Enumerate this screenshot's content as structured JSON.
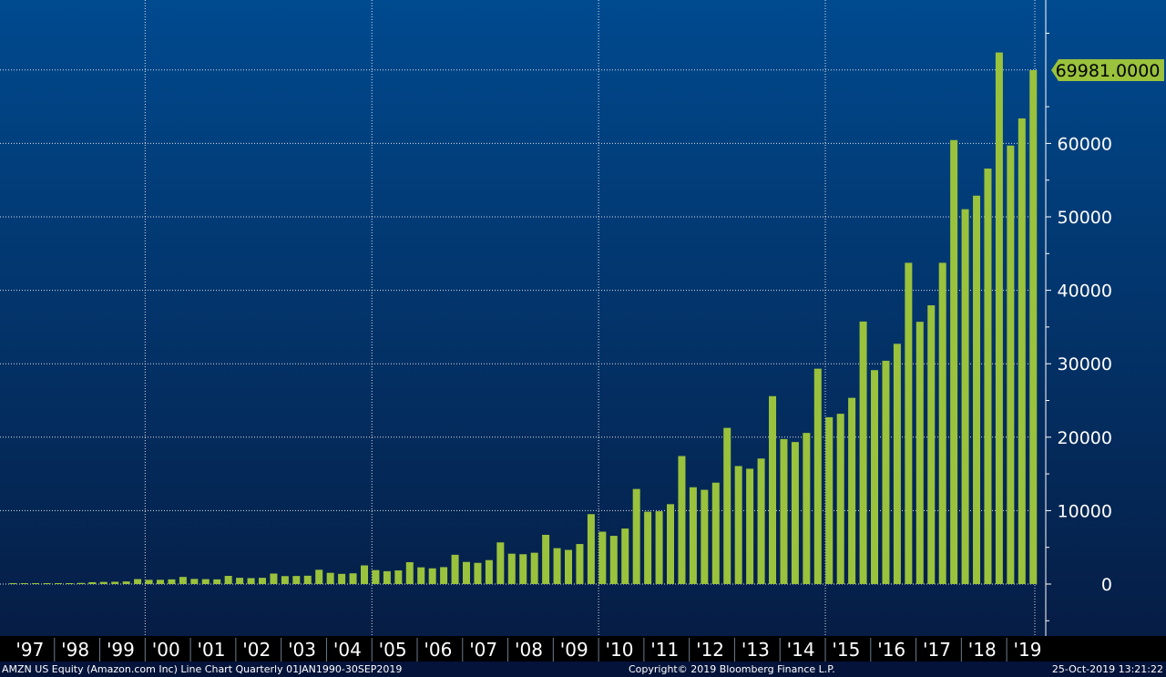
{
  "colors": {
    "bar": "#9ac23c",
    "label_bg": "#9ac23c",
    "grid": "#ffffff",
    "axis_text": "#ffffff",
    "bg_top": "#004a8f",
    "bg_bottom": "#061a40"
  },
  "footer": {
    "left": "AMZN US Equity (Amazon.com Inc) Line Chart  Quarterly 01JAN1990-30SEP2019",
    "center": "Copyright© 2019 Bloomberg Finance L.P.",
    "right": "25-Oct-2019 13:21:22"
  },
  "chart_data": {
    "type": "bar",
    "last_value_label": "69981.0000",
    "ylim": [
      -5000,
      79000
    ],
    "yticks": [
      0,
      10000,
      20000,
      30000,
      40000,
      50000,
      60000
    ],
    "x_tick_labels": [
      "'97",
      "'98",
      "'99",
      "'00",
      "'01",
      "'02",
      "'03",
      "'04",
      "'05",
      "'06",
      "'07",
      "'08",
      "'09",
      "'10",
      "'11",
      "'12",
      "'13",
      "'14",
      "'15",
      "'16",
      "'17",
      "'18",
      "'19"
    ],
    "grid": true,
    "categories": [
      "1997 Q1",
      "1997 Q2",
      "1997 Q3",
      "1997 Q4",
      "1998 Q1",
      "1998 Q2",
      "1998 Q3",
      "1998 Q4",
      "1999 Q1",
      "1999 Q2",
      "1999 Q3",
      "1999 Q4",
      "2000 Q1",
      "2000 Q2",
      "2000 Q3",
      "2000 Q4",
      "2001 Q1",
      "2001 Q2",
      "2001 Q3",
      "2001 Q4",
      "2002 Q1",
      "2002 Q2",
      "2002 Q3",
      "2002 Q4",
      "2003 Q1",
      "2003 Q2",
      "2003 Q3",
      "2003 Q4",
      "2004 Q1",
      "2004 Q2",
      "2004 Q3",
      "2004 Q4",
      "2005 Q1",
      "2005 Q2",
      "2005 Q3",
      "2005 Q4",
      "2006 Q1",
      "2006 Q2",
      "2006 Q3",
      "2006 Q4",
      "2007 Q1",
      "2007 Q2",
      "2007 Q3",
      "2007 Q4",
      "2008 Q1",
      "2008 Q2",
      "2008 Q3",
      "2008 Q4",
      "2009 Q1",
      "2009 Q2",
      "2009 Q3",
      "2009 Q4",
      "2010 Q1",
      "2010 Q2",
      "2010 Q3",
      "2010 Q4",
      "2011 Q1",
      "2011 Q2",
      "2011 Q3",
      "2011 Q4",
      "2012 Q1",
      "2012 Q2",
      "2012 Q3",
      "2012 Q4",
      "2013 Q1",
      "2013 Q2",
      "2013 Q3",
      "2013 Q4",
      "2014 Q1",
      "2014 Q2",
      "2014 Q3",
      "2014 Q4",
      "2015 Q1",
      "2015 Q2",
      "2015 Q3",
      "2015 Q4",
      "2016 Q1",
      "2016 Q2",
      "2016 Q3",
      "2016 Q4",
      "2017 Q1",
      "2017 Q2",
      "2017 Q3",
      "2017 Q4",
      "2018 Q1",
      "2018 Q2",
      "2018 Q3",
      "2018 Q4",
      "2019 Q1",
      "2019 Q2",
      "2019 Q3"
    ],
    "values": [
      16,
      28,
      38,
      66,
      88,
      116,
      154,
      253,
      294,
      314,
      356,
      676,
      574,
      578,
      638,
      972,
      700,
      668,
      639,
      1115,
      847,
      806,
      851,
      1429,
      1084,
      1100,
      1134,
      1946,
      1530,
      1387,
      1462,
      2541,
      1902,
      1753,
      1858,
      2977,
      2279,
      2139,
      2307,
      3986,
      3015,
      2886,
      3262,
      5673,
      4135,
      4063,
      4265,
      6704,
      4889,
      4651,
      5449,
      9519,
      7131,
      6566,
      7560,
      12948,
      9857,
      9913,
      10876,
      17431,
      13185,
      12834,
      13806,
      21268,
      16070,
      15704,
      17092,
      25587,
      19741,
      19340,
      20579,
      29328,
      22717,
      23185,
      25358,
      35747,
      29128,
      30404,
      32714,
      43741,
      35714,
      37955,
      43744,
      60453,
      51042,
      52886,
      56576,
      72383,
      59700,
      63404,
      69981
    ]
  }
}
